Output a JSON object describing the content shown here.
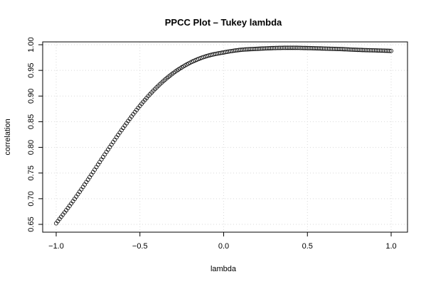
{
  "chart_data": {
    "type": "scatter",
    "title": "PPCC Plot – Tukey lambda",
    "xlabel": "lambda",
    "ylabel": "correlation",
    "xlim": [
      -1.0,
      1.0
    ],
    "ylim": [
      0.65,
      1.0
    ],
    "x_ticks": [
      "−1.0",
      "−0.5",
      "0.0",
      "0.5",
      "1.0"
    ],
    "x_tick_values": [
      -1.0,
      -0.5,
      0.0,
      0.5,
      1.0
    ],
    "y_ticks": [
      "0.65",
      "0.70",
      "0.75",
      "0.80",
      "0.85",
      "0.90",
      "0.95",
      "1.00"
    ],
    "y_tick_values": [
      0.65,
      0.7,
      0.75,
      0.8,
      0.85,
      0.9,
      0.95,
      1.0
    ],
    "grid": true,
    "marker": "open-circle",
    "x": [
      -1.0,
      -0.9,
      -0.8,
      -0.7,
      -0.6,
      -0.5,
      -0.4,
      -0.3,
      -0.2,
      -0.1,
      0.0,
      0.1,
      0.2,
      0.3,
      0.4,
      0.5,
      0.6,
      0.7,
      0.8,
      0.9,
      1.0
    ],
    "y": [
      0.652,
      0.695,
      0.742,
      0.791,
      0.838,
      0.881,
      0.917,
      0.945,
      0.965,
      0.978,
      0.985,
      0.99,
      0.992,
      0.9935,
      0.994,
      0.9935,
      0.9925,
      0.9915,
      0.99,
      0.989,
      0.988
    ]
  }
}
